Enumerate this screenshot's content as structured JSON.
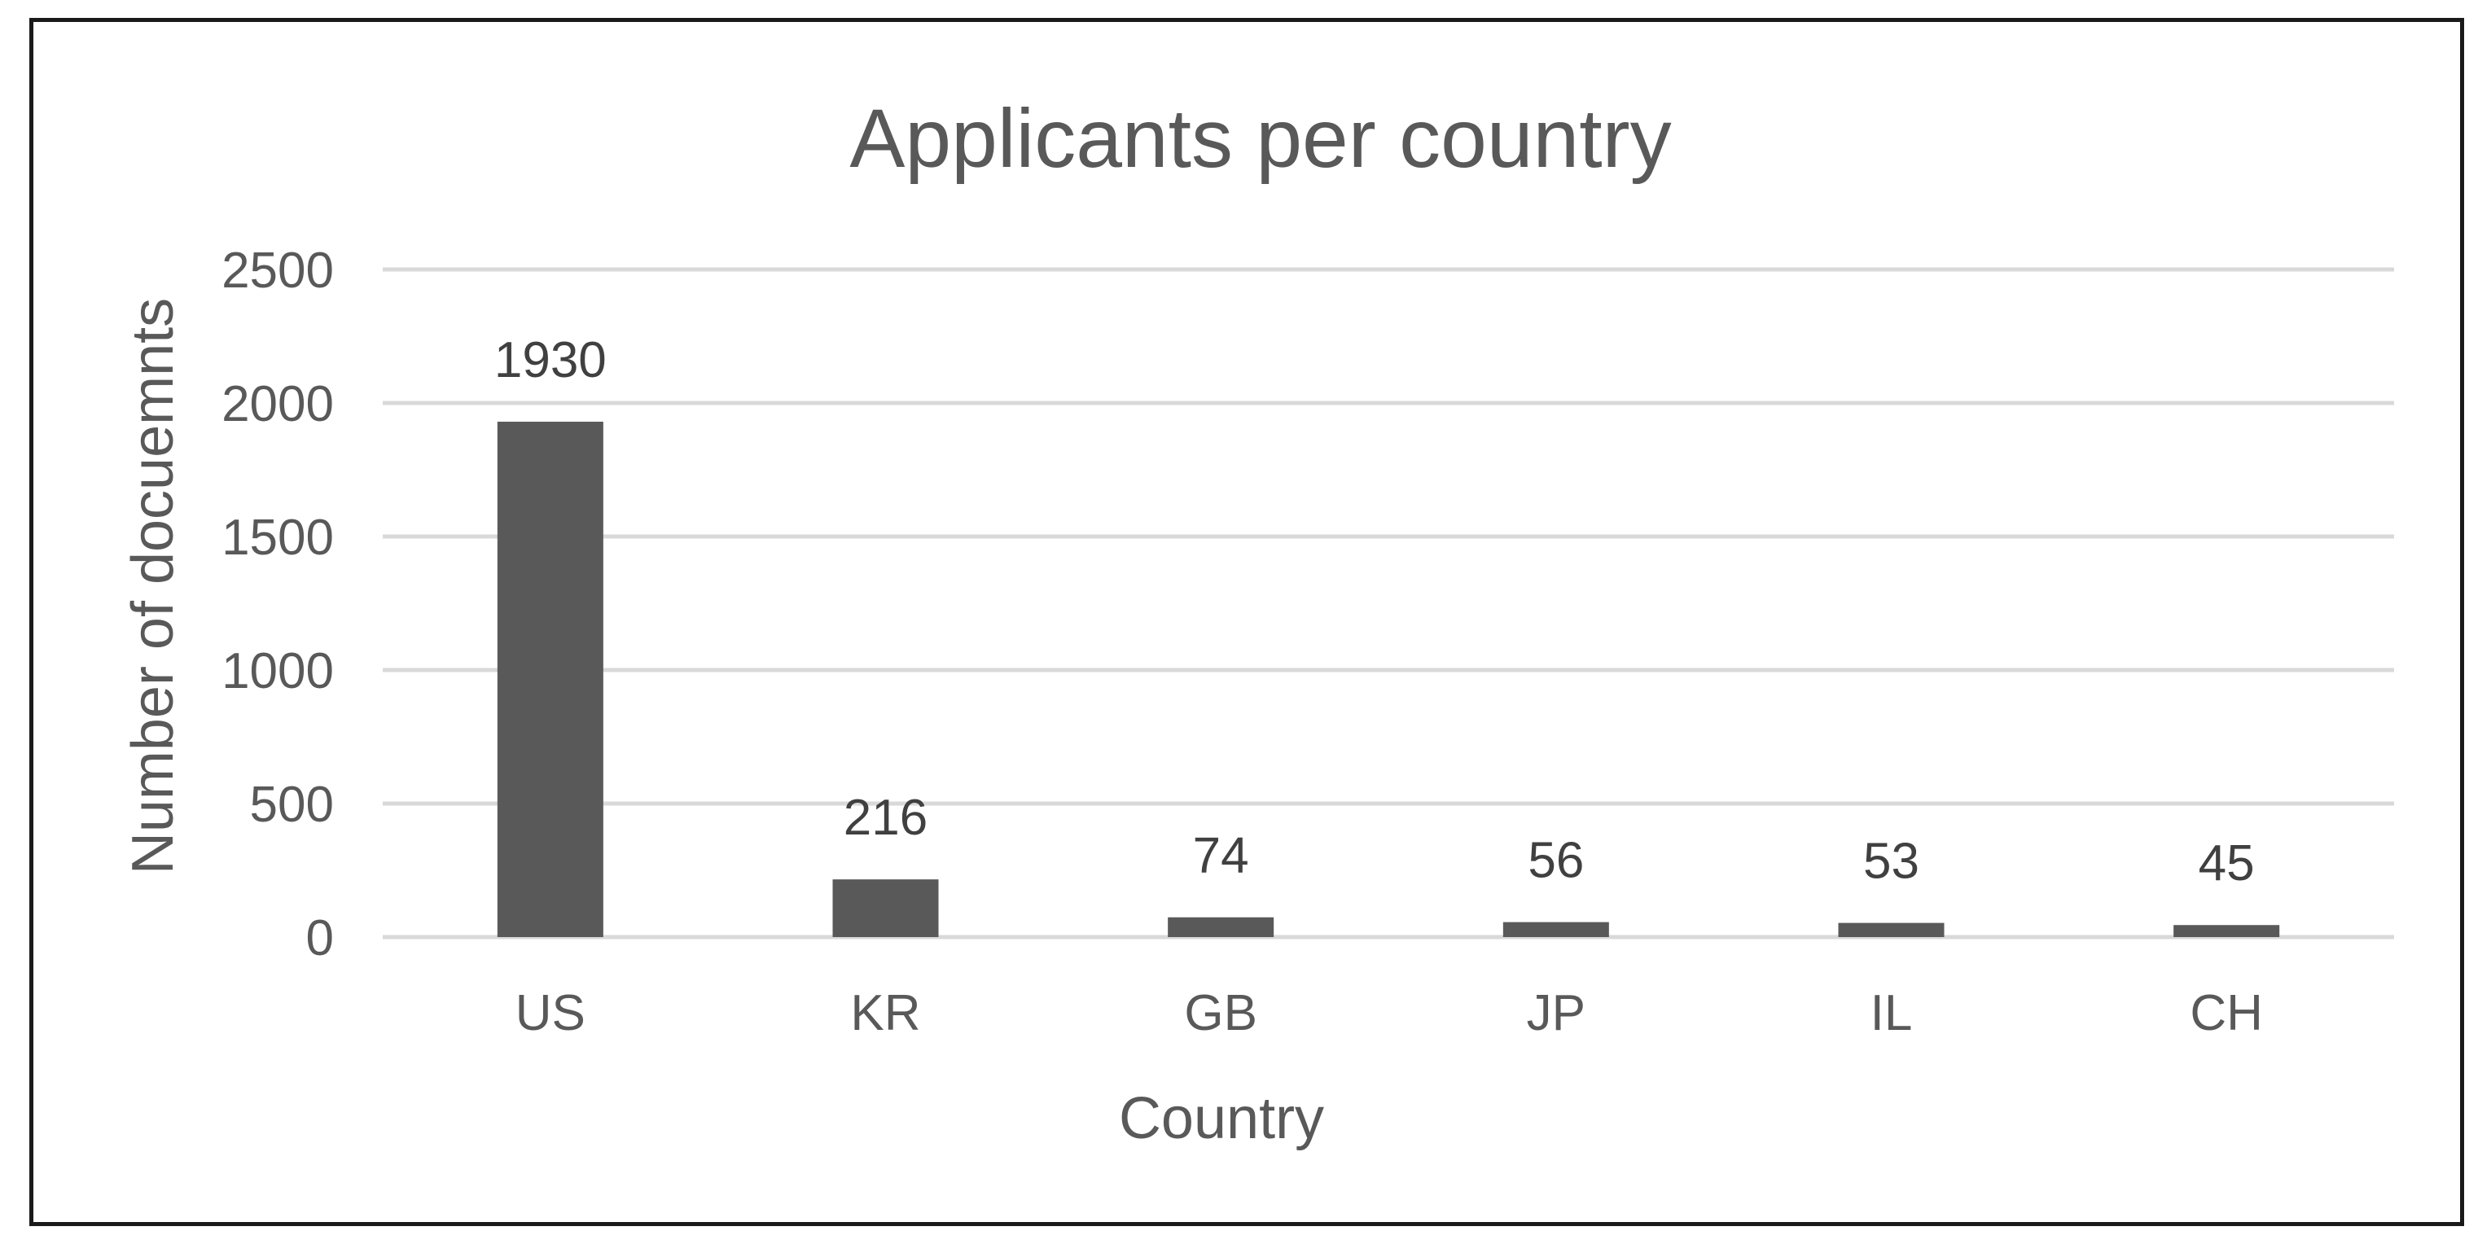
{
  "chart_data": {
    "type": "bar",
    "title": "Applicants per country",
    "xlabel": "Country",
    "ylabel": "Number of docuemnts",
    "categories": [
      "US",
      "KR",
      "GB",
      "JP",
      "IL",
      "CH"
    ],
    "values": [
      1930,
      216,
      74,
      56,
      53,
      45
    ],
    "data_labels": [
      "1930",
      "216",
      "74",
      "56",
      "53",
      "45"
    ],
    "ylim": [
      0,
      2500
    ],
    "yticks": [
      0,
      500,
      1000,
      1500,
      2000,
      2500
    ],
    "ytick_labels": [
      "0",
      "500",
      "1000",
      "1500",
      "2000",
      "2500"
    ],
    "grid": true,
    "legend": "none",
    "colors": {
      "bar": "#595959",
      "grid": "#d9d9d9",
      "text": "#595959",
      "border": "#1a1a1a"
    }
  }
}
